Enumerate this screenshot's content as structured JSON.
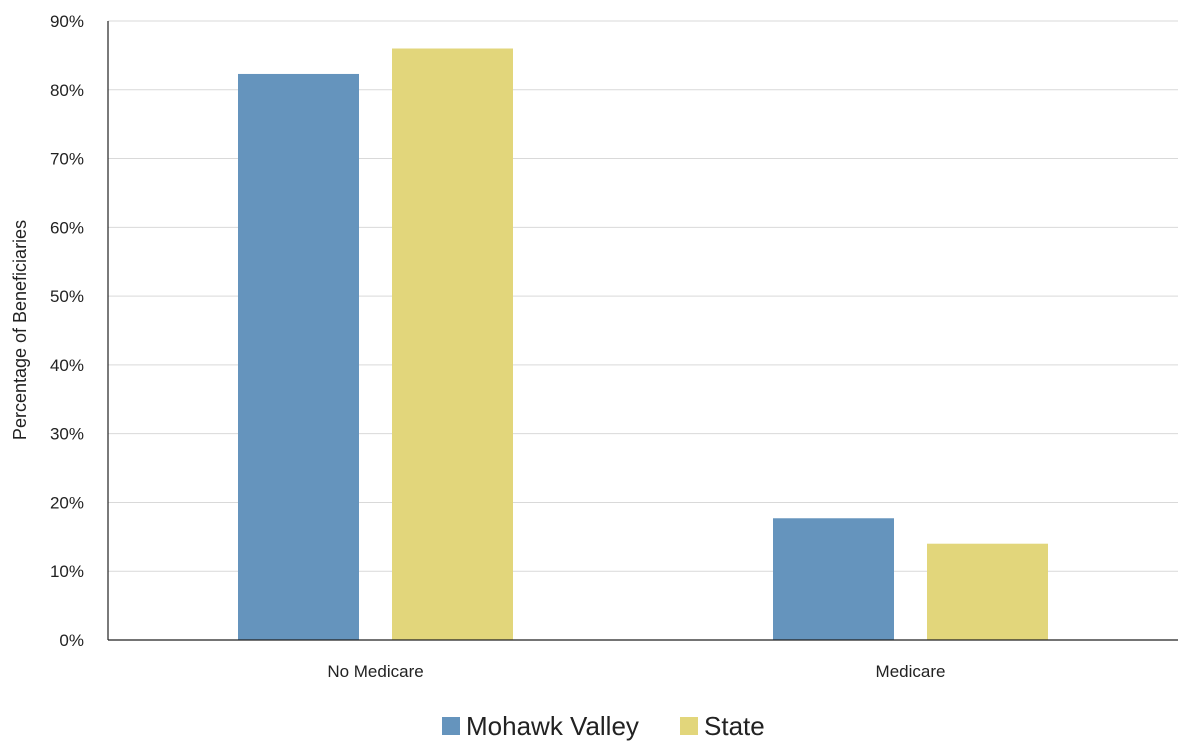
{
  "chart_data": {
    "type": "bar",
    "title": "",
    "xlabel": "",
    "ylabel": "Percentage of Beneficiaries",
    "categories": [
      "No Medicare",
      "Medicare"
    ],
    "series": [
      {
        "name": "Mohawk Valley",
        "color": "#6594bd",
        "values": [
          82.3,
          17.7
        ]
      },
      {
        "name": "State",
        "color": "#e2d67b",
        "values": [
          86.0,
          14.0
        ]
      }
    ],
    "ylim": [
      0,
      90
    ],
    "yticks": [
      0,
      10,
      20,
      30,
      40,
      50,
      60,
      70,
      80,
      90
    ],
    "ytick_format": "percent",
    "grid": true,
    "legend_position": "bottom-center"
  }
}
